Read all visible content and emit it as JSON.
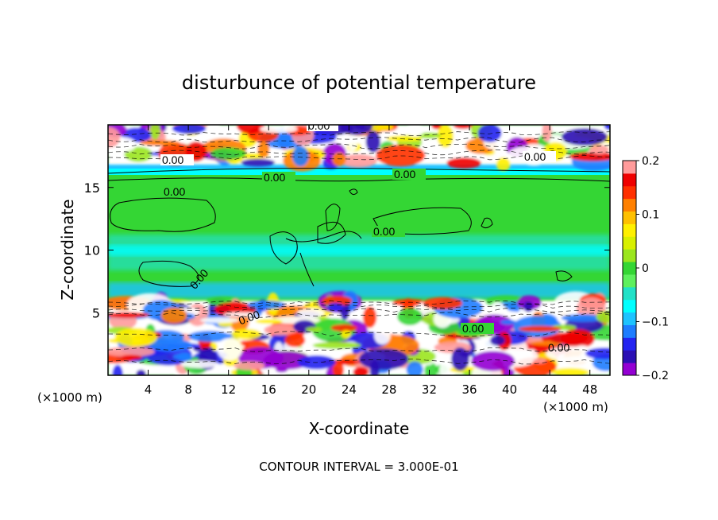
{
  "chart_data": {
    "type": "heatmap",
    "title": "disturbunce of potential temperature",
    "xlabel": "X-coordinate",
    "ylabel": "Z-coordinate",
    "x_unit": "(×1000 m)",
    "y_unit": "(×1000 m)",
    "xlim": [
      0,
      50
    ],
    "ylim": [
      0,
      20
    ],
    "x_ticks": [
      4,
      8,
      12,
      16,
      20,
      24,
      28,
      32,
      36,
      40,
      44,
      48
    ],
    "y_ticks": [
      5,
      10,
      15
    ],
    "colorbar": {
      "range": [
        -0.2,
        0.2
      ],
      "tick_values": [
        0.2,
        0.1,
        0,
        -0.1,
        -0.2
      ],
      "tick_labels": [
        "0.2",
        "0.1",
        "0",
        "−0.1",
        "−0.2"
      ],
      "colors": [
        "#9400d3",
        "#2b0fb4",
        "#2424f0",
        "#1e7dff",
        "#1ec3ff",
        "#00ffff",
        "#21e1c7",
        "#5ef05e",
        "#34d634",
        "#9be61e",
        "#d8f000",
        "#fff000",
        "#ffc000",
        "#ff8000",
        "#ff3000",
        "#ef0000",
        "#ff9b9b"
      ]
    },
    "contour_labels": [
      "0.00",
      "0.00",
      "0.00",
      "0.00",
      "0.00",
      "0.00",
      "0.00",
      "0.00",
      "0.00",
      "0.00",
      "0.00"
    ],
    "contour_interval": "CONTOUR INTERVAL = 3.000E-01",
    "bands": [
      {
        "z_range": [
          16.6,
          20
        ],
        "character": "strong positive/negative anomalies"
      },
      {
        "z_range": [
          6.2,
          16.6
        ],
        "character": "near zero"
      },
      {
        "z_range": [
          0,
          6.2
        ],
        "character": "strong positive/negative anomalies"
      }
    ],
    "grid": false,
    "legend_position": "right colorbar"
  }
}
